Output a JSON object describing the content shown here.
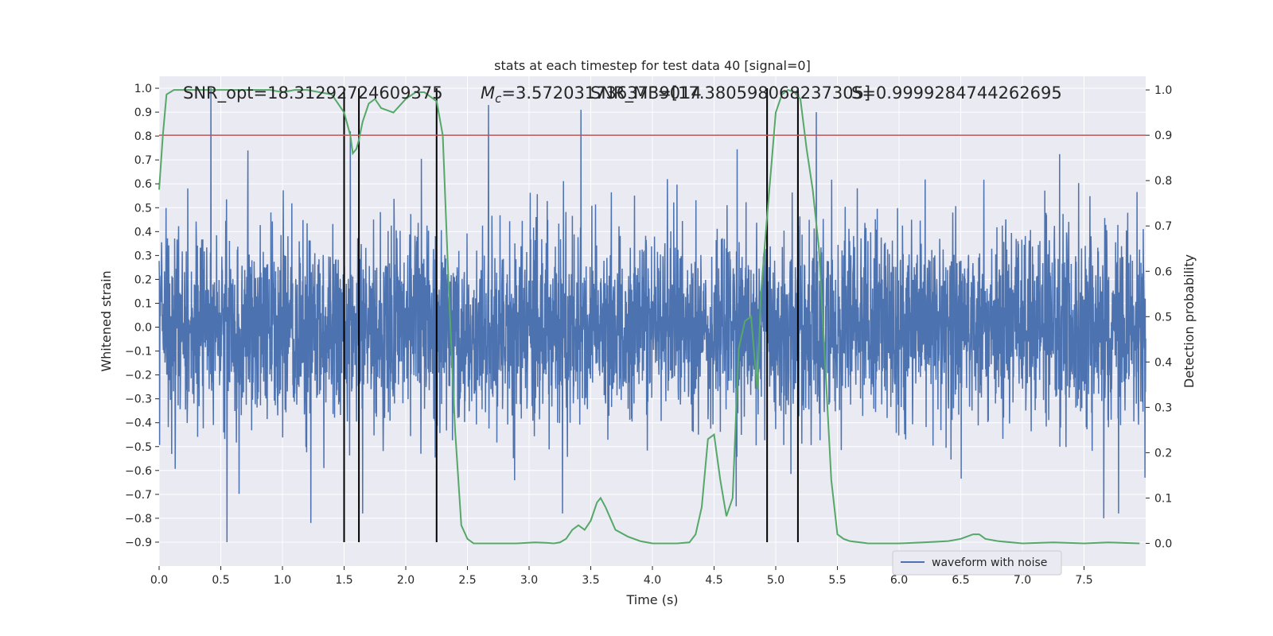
{
  "chart_data": {
    "type": "line",
    "title": "stats at each timestep for test data 40 [signal=0]",
    "xlabel": "Time (s)",
    "ylabel": "Whitened strain",
    "y2label": "Detection probability",
    "xlim": [
      0.0,
      8.0
    ],
    "ylim": [
      -1.0,
      1.05
    ],
    "y2lim": [
      -0.05,
      1.03
    ],
    "grid": true,
    "legend_position": "lower-right",
    "x_ticks": [
      "0.0",
      "0.5",
      "1.0",
      "1.5",
      "2.0",
      "2.5",
      "3.0",
      "3.5",
      "4.0",
      "4.5",
      "5.0",
      "5.5",
      "6.0",
      "6.5",
      "7.0",
      "7.5"
    ],
    "y_ticks": [
      "1.0",
      "0.9",
      "0.8",
      "0.7",
      "0.6",
      "0.5",
      "0.4",
      "0.3",
      "0.2",
      "0.1",
      "0.0",
      "−0.1",
      "−0.2",
      "−0.3",
      "−0.4",
      "−0.5",
      "−0.6",
      "−0.7",
      "−0.8",
      "−0.9"
    ],
    "y2_ticks": [
      "1.0",
      "0.9",
      "0.8",
      "0.7",
      "0.6",
      "0.5",
      "0.4",
      "0.3",
      "0.2",
      "0.1",
      "0.0"
    ],
    "annotations": {
      "snr_opt": "SNR_opt=18.31292724609375",
      "mc": "=3.5720317363739014",
      "mc_symbol": "M",
      "mc_sub": "c",
      "snr_mf": "SNR_MF=[17.380598068237305]",
      "s": "S=0.9999284744262695"
    },
    "threshold": {
      "y2": 0.9,
      "color": "#c44e52"
    },
    "vertical_lines": [
      1.5,
      1.62,
      2.25,
      4.93,
      5.18
    ],
    "series": [
      {
        "name": "waveform with noise",
        "axis": "left",
        "color": "#4c72b0",
        "kind": "noise",
        "x_range": [
          0.0,
          8.0
        ],
        "samples": 4000,
        "seed": 40,
        "spikes_up": [
          [
            0.42,
            1.0
          ],
          [
            0.72,
            0.74
          ],
          [
            2.67,
            0.93
          ],
          [
            3.42,
            0.91
          ],
          [
            4.93,
            0.96
          ],
          [
            5.18,
            0.98
          ],
          [
            5.33,
            0.9
          ],
          [
            1.55,
            0.82
          ]
        ],
        "spikes_down": [
          [
            0.55,
            -0.9
          ],
          [
            1.65,
            -0.78
          ],
          [
            3.27,
            -0.78
          ],
          [
            4.68,
            -0.75
          ],
          [
            7.66,
            -0.8
          ],
          [
            1.23,
            -0.82
          ],
          [
            7.78,
            -0.78
          ]
        ]
      },
      {
        "name": "Detection probability",
        "axis": "right",
        "color": "#55a868",
        "x": [
          0.0,
          0.03,
          0.06,
          0.12,
          0.2,
          0.4,
          0.6,
          0.8,
          0.9,
          1.0,
          1.1,
          1.2,
          1.3,
          1.4,
          1.45,
          1.5,
          1.55,
          1.57,
          1.6,
          1.62,
          1.65,
          1.7,
          1.75,
          1.8,
          1.9,
          2.0,
          2.08,
          2.15,
          2.25,
          2.3,
          2.35,
          2.4,
          2.45,
          2.5,
          2.55,
          2.7,
          2.9,
          3.05,
          3.15,
          3.2,
          3.25,
          3.3,
          3.35,
          3.4,
          3.45,
          3.5,
          3.55,
          3.58,
          3.62,
          3.7,
          3.8,
          3.9,
          4.0,
          4.1,
          4.2,
          4.3,
          4.35,
          4.4,
          4.45,
          4.5,
          4.55,
          4.6,
          4.65,
          4.7,
          4.75,
          4.8,
          4.85,
          4.88,
          4.93,
          4.97,
          5.0,
          5.05,
          5.1,
          5.15,
          5.2,
          5.25,
          5.3,
          5.35,
          5.4,
          5.45,
          5.5,
          5.55,
          5.6,
          5.75,
          6.0,
          6.2,
          6.4,
          6.5,
          6.55,
          6.6,
          6.65,
          6.7,
          6.8,
          7.0,
          7.25,
          7.5,
          7.7,
          7.95
        ],
        "y": [
          0.78,
          0.9,
          0.99,
          1.0,
          1.0,
          1.0,
          1.0,
          1.0,
          1.0,
          0.995,
          1.0,
          1.0,
          0.995,
          0.99,
          0.97,
          0.95,
          0.9,
          0.86,
          0.87,
          0.89,
          0.93,
          0.97,
          0.98,
          0.96,
          0.95,
          0.98,
          0.995,
          0.995,
          0.975,
          0.9,
          0.55,
          0.25,
          0.04,
          0.01,
          0.0,
          0.0,
          0.0,
          0.002,
          0.001,
          0.0,
          0.002,
          0.01,
          0.03,
          0.04,
          0.03,
          0.05,
          0.09,
          0.1,
          0.08,
          0.03,
          0.015,
          0.005,
          0.0,
          0.0,
          0.0,
          0.002,
          0.02,
          0.08,
          0.23,
          0.24,
          0.14,
          0.06,
          0.1,
          0.43,
          0.49,
          0.5,
          0.34,
          0.55,
          0.72,
          0.85,
          0.95,
          0.99,
          1.0,
          0.995,
          0.98,
          0.87,
          0.78,
          0.65,
          0.4,
          0.14,
          0.02,
          0.01,
          0.005,
          0.0,
          0.0,
          0.002,
          0.005,
          0.01,
          0.015,
          0.02,
          0.02,
          0.01,
          0.005,
          0.0,
          0.002,
          0.0,
          0.002,
          0.0
        ]
      }
    ]
  }
}
